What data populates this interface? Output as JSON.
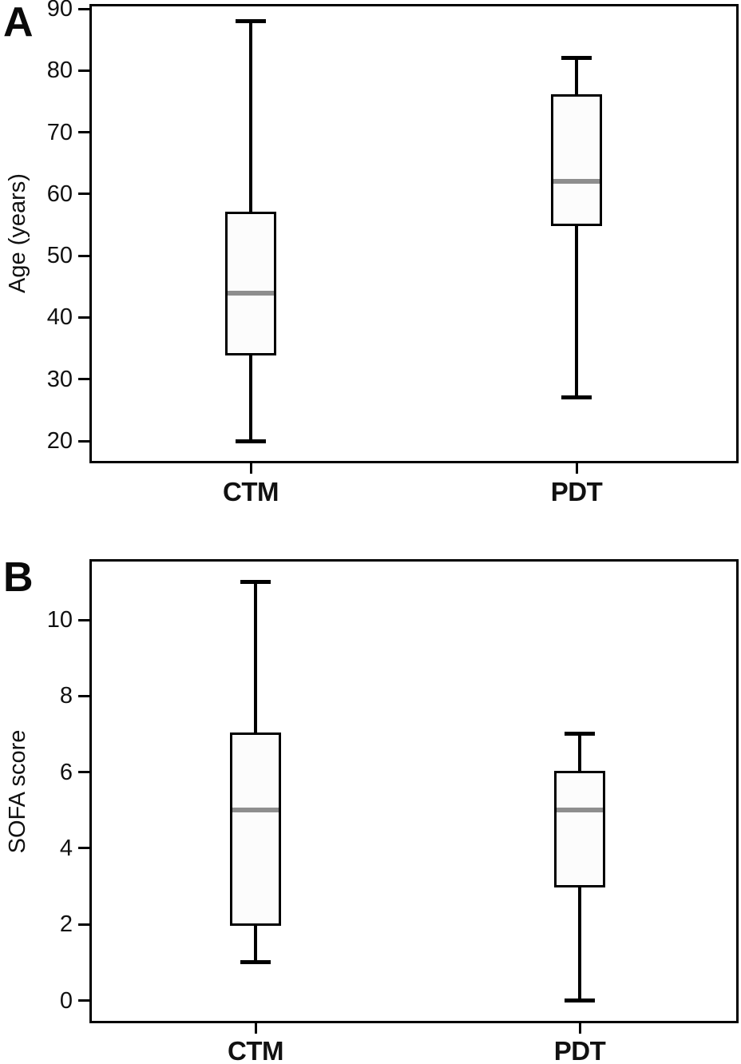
{
  "figure": {
    "panels": [
      {
        "panel_label": "A",
        "ylabel": "Age (years)"
      },
      {
        "panel_label": "B",
        "ylabel": "SOFA score"
      }
    ]
  },
  "chart_data": [
    {
      "type": "boxplot",
      "panel": "A",
      "title": "",
      "xlabel": "",
      "ylabel": "Age (years)",
      "categories": [
        "CTM",
        "PDT"
      ],
      "yticks": [
        20,
        30,
        40,
        50,
        60,
        70,
        80,
        90
      ],
      "ylim": [
        16.5,
        90.7
      ],
      "grid": false,
      "legend": "none",
      "series": [
        {
          "name": "CTM",
          "whisker_low": 20,
          "q1": 34,
          "median": 44,
          "q3": 57,
          "whisker_high": 88
        },
        {
          "name": "PDT",
          "whisker_low": 27,
          "q1": 55,
          "median": 62,
          "q3": 76,
          "whisker_high": 82
        }
      ]
    },
    {
      "type": "boxplot",
      "panel": "B",
      "title": "",
      "xlabel": "",
      "ylabel": "SOFA score",
      "categories": [
        "CTM",
        "PDT"
      ],
      "yticks": [
        0,
        2,
        4,
        6,
        8,
        10
      ],
      "ylim": [
        -0.6,
        11.6
      ],
      "grid": false,
      "legend": "none",
      "series": [
        {
          "name": "CTM",
          "whisker_low": 1,
          "q1": 2,
          "median": 5,
          "q3": 7,
          "whisker_high": 11
        },
        {
          "name": "PDT",
          "whisker_low": 0,
          "q1": 3,
          "median": 5,
          "q3": 6,
          "whisker_high": 7
        }
      ]
    }
  ],
  "colors": {
    "line": "#000000",
    "median": "#8e8e8e",
    "box_fill": "#fcfcfc",
    "background": "#ffffff",
    "text": "#111111"
  }
}
